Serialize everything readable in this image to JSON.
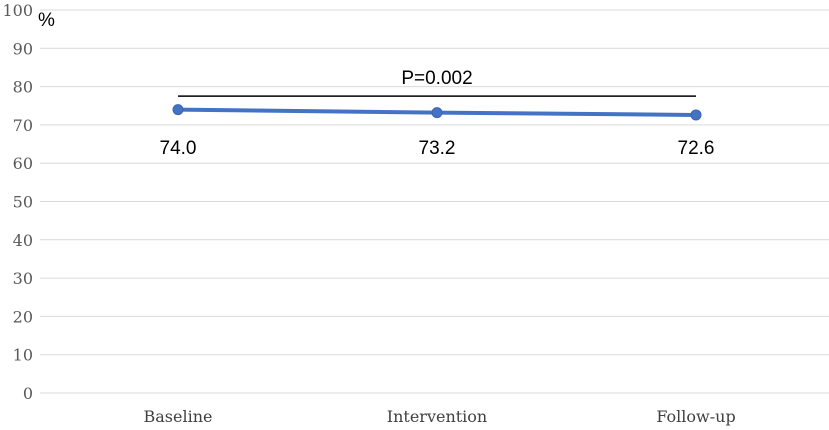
{
  "chart_data": {
    "type": "line",
    "title": "",
    "xlabel": "",
    "ylabel": "%",
    "ylim": [
      0,
      100
    ],
    "y_ticks": [
      "0",
      "10",
      "20",
      "30",
      "40",
      "50",
      "60",
      "70",
      "80",
      "90",
      "100"
    ],
    "categories": [
      "Baseline",
      "Intervention",
      "Follow-up"
    ],
    "series": [
      {
        "values": [
          74.0,
          73.2,
          72.6
        ],
        "data_labels": [
          "74.0",
          "73.2",
          "72.6"
        ],
        "color": "#4472C4"
      }
    ],
    "annotation": {
      "text": "P=0.002",
      "spans": [
        "Baseline",
        "Follow-up"
      ]
    },
    "grid": true,
    "legend": "none",
    "gridline_color": "#D9D9D9"
  }
}
